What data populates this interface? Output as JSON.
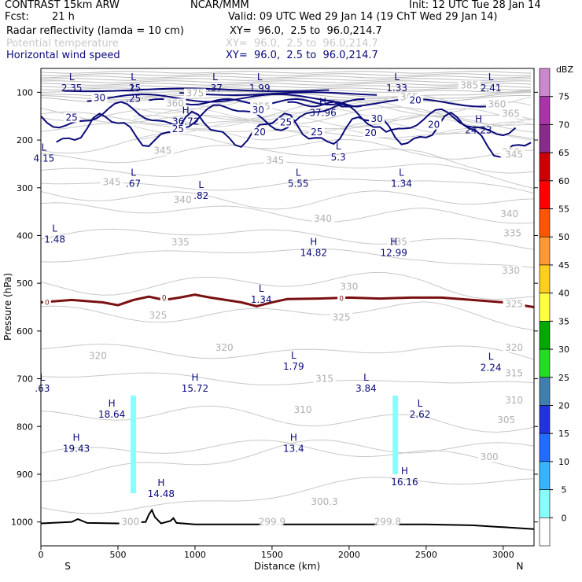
{
  "header": {
    "model": "CONTRAST 15km ARW",
    "org": "NCAR/MMM",
    "init": "Init: 12 UTC Tue 28 Jan 14",
    "fcst_label": "Fcst:",
    "fcst_value": "21 h",
    "valid": "Valid: 09 UTC Wed 29 Jan 14 (19 ChT Wed 29 Jan 14)",
    "fields": [
      {
        "name": "Radar reflectivity (lamda = 10 cm)",
        "xy": "XY=  96.0,  2.5 to  96.0,214.7",
        "color": "#000000"
      },
      {
        "name": "Potential temperature",
        "xy": "XY=  96.0,  2.5 to  96.0,214.7",
        "color": "#c8c8c8"
      },
      {
        "name": "Horizontal wind speed",
        "xy": "XY=  96.0,  2.5 to  96.0,214.7",
        "color": "#0a0a7a"
      }
    ]
  },
  "chart_data": {
    "type": "cross-section",
    "xlabel": "Distance (km)",
    "ylabel": "Pressure (hPa)",
    "xlim": [
      0,
      3200
    ],
    "ylim": [
      1050,
      50
    ],
    "x_ticks": [
      0,
      500,
      1000,
      1500,
      2000,
      2500,
      3000
    ],
    "y_ticks": [
      100,
      200,
      300,
      400,
      500,
      600,
      700,
      800,
      900,
      1000
    ],
    "x_end_labels": {
      "left": "S",
      "right": "N"
    },
    "colorbar": {
      "unit": "dBZ",
      "levels": [
        0,
        5,
        10,
        15,
        20,
        25,
        30,
        35,
        40,
        45,
        50,
        55,
        60,
        65,
        70,
        75
      ],
      "colors": [
        "#ffffff",
        "#86ffff",
        "#36b4ff",
        "#1f6cff",
        "#2233dd",
        "#3f7faf",
        "#22dd22",
        "#00aa00",
        "#ffff44",
        "#ffcc22",
        "#ff9933",
        "#ff5500",
        "#ff0000",
        "#cc0000",
        "#8a2a8a",
        "#aa33aa",
        "#cc88cc"
      ]
    },
    "theta_labels": [
      {
        "x": 1000,
        "p": 107,
        "v": "375"
      },
      {
        "x": 2780,
        "p": 90,
        "v": "385"
      },
      {
        "x": 1430,
        "p": 135,
        "v": "355"
      },
      {
        "x": 870,
        "p": 128,
        "v": "360"
      },
      {
        "x": 2960,
        "p": 130,
        "v": "360"
      },
      {
        "x": 3050,
        "p": 150,
        "v": "365"
      },
      {
        "x": 2390,
        "p": 115,
        "v": "365"
      },
      {
        "x": 3050,
        "p": 230,
        "v": "350"
      },
      {
        "x": 790,
        "p": 227,
        "v": "345"
      },
      {
        "x": 1520,
        "p": 248,
        "v": "345"
      },
      {
        "x": 3070,
        "p": 235,
        "v": "345"
      },
      {
        "x": 460,
        "p": 293,
        "v": "345"
      },
      {
        "x": 920,
        "p": 330,
        "v": "340"
      },
      {
        "x": 1830,
        "p": 370,
        "v": "340"
      },
      {
        "x": 3040,
        "p": 360,
        "v": "340"
      },
      {
        "x": 905,
        "p": 419,
        "v": "335"
      },
      {
        "x": 2320,
        "p": 418,
        "v": "335"
      },
      {
        "x": 3060,
        "p": 400,
        "v": "335"
      },
      {
        "x": 2000,
        "p": 512,
        "v": "330"
      },
      {
        "x": 3050,
        "p": 478,
        "v": "330"
      },
      {
        "x": 760,
        "p": 572,
        "v": "325"
      },
      {
        "x": 1950,
        "p": 576,
        "v": "325"
      },
      {
        "x": 3070,
        "p": 548,
        "v": "325"
      },
      {
        "x": 370,
        "p": 657,
        "v": "320"
      },
      {
        "x": 1190,
        "p": 640,
        "v": "320"
      },
      {
        "x": 3070,
        "p": 640,
        "v": "320"
      },
      {
        "x": 1840,
        "p": 705,
        "v": "315"
      },
      {
        "x": 3070,
        "p": 693,
        "v": "315"
      },
      {
        "x": 1700,
        "p": 770,
        "v": "310"
      },
      {
        "x": 3070,
        "p": 750,
        "v": "310"
      },
      {
        "x": 3020,
        "p": 791,
        "v": "305"
      },
      {
        "x": 2910,
        "p": 869,
        "v": "300"
      },
      {
        "x": 580,
        "p": 1005,
        "v": "300"
      },
      {
        "x": 1500,
        "p": 1005,
        "v": "299.9"
      },
      {
        "x": 2250,
        "p": 1005,
        "v": "299.8"
      },
      {
        "x": 1840,
        "p": 963,
        "v": "300.3"
      }
    ],
    "wind_contour_labels": [
      {
        "x": 380,
        "p": 117,
        "v": "30"
      },
      {
        "x": 1410,
        "p": 142,
        "v": "30"
      },
      {
        "x": 2180,
        "p": 160,
        "v": "30"
      },
      {
        "x": 2430,
        "p": 122,
        "v": "20"
      },
      {
        "x": 2550,
        "p": 173,
        "v": "20"
      },
      {
        "x": 200,
        "p": 158,
        "v": "25"
      },
      {
        "x": 1590,
        "p": 168,
        "v": "25"
      },
      {
        "x": 1790,
        "p": 188,
        "v": "25"
      },
      {
        "x": 890,
        "p": 182,
        "v": "25"
      },
      {
        "x": 1420,
        "p": 188,
        "v": "20"
      },
      {
        "x": 2140,
        "p": 190,
        "v": "20"
      }
    ],
    "extrema": [
      {
        "t": "L",
        "x": 200,
        "p": 75,
        "v": "2.35"
      },
      {
        "t": "L",
        "x": 600,
        "p": 75,
        "v": ".25"
      },
      {
        "t": "L",
        "x": 1130,
        "p": 75,
        "v": ".37"
      },
      {
        "t": "L",
        "x": 1420,
        "p": 75,
        "v": "1.99"
      },
      {
        "t": "L",
        "x": 2310,
        "p": 75,
        "v": "1.33"
      },
      {
        "t": "L",
        "x": 2920,
        "p": 75,
        "v": "2.41"
      },
      {
        "t": "L",
        "x": 600,
        "p": 97,
        "v": ".25"
      },
      {
        "t": "H",
        "x": 940,
        "p": 145,
        "v": "36.72"
      },
      {
        "t": "H",
        "x": 1830,
        "p": 127,
        "v": "37.96"
      },
      {
        "t": "H",
        "x": 2840,
        "p": 163,
        "v": "24.23"
      },
      {
        "t": "L",
        "x": 20,
        "p": 222,
        "v": "4.15"
      },
      {
        "t": "L",
        "x": 1930,
        "p": 220,
        "v": "5.3"
      },
      {
        "t": "L",
        "x": 600,
        "p": 275,
        "v": ".67"
      },
      {
        "t": "L",
        "x": 1670,
        "p": 275,
        "v": "5.55"
      },
      {
        "t": "L",
        "x": 2340,
        "p": 275,
        "v": "1.34"
      },
      {
        "t": "L",
        "x": 1040,
        "p": 300,
        "v": ".82"
      },
      {
        "t": "L",
        "x": 90,
        "p": 392,
        "v": "1.48"
      },
      {
        "t": "H",
        "x": 1770,
        "p": 420,
        "v": "14.82"
      },
      {
        "t": "H",
        "x": 2290,
        "p": 420,
        "v": "12.99"
      },
      {
        "t": "L",
        "x": 1430,
        "p": 518,
        "v": "1.34"
      },
      {
        "t": "L",
        "x": 1640,
        "p": 658,
        "v": "1.79"
      },
      {
        "t": "L",
        "x": 2920,
        "p": 660,
        "v": "2.24"
      },
      {
        "t": "H",
        "x": 1000,
        "p": 704,
        "v": "15.72"
      },
      {
        "t": "L",
        "x": 2110,
        "p": 704,
        "v": "3.84"
      },
      {
        "t": "L",
        "x": 10,
        "p": 704,
        "v": ".63"
      },
      {
        "t": "H",
        "x": 460,
        "p": 758,
        "v": "18.64"
      },
      {
        "t": "L",
        "x": 2460,
        "p": 758,
        "v": "2.62"
      },
      {
        "t": "H",
        "x": 230,
        "p": 830,
        "v": "19.43"
      },
      {
        "t": "H",
        "x": 1640,
        "p": 830,
        "v": "13.4"
      },
      {
        "t": "H",
        "x": 780,
        "p": 925,
        "v": "14.48"
      },
      {
        "t": "H",
        "x": 2360,
        "p": 900,
        "v": "16.16"
      }
    ],
    "freezing_level_label": "0",
    "freezing_level": [
      [
        0,
        540
      ],
      [
        200,
        535
      ],
      [
        400,
        540
      ],
      [
        500,
        546
      ],
      [
        600,
        535
      ],
      [
        700,
        528
      ],
      [
        800,
        535
      ],
      [
        900,
        530
      ],
      [
        1000,
        524
      ],
      [
        1100,
        530
      ],
      [
        1200,
        535
      ],
      [
        1300,
        540
      ],
      [
        1400,
        548
      ],
      [
        1500,
        540
      ],
      [
        1600,
        533
      ],
      [
        1800,
        532
      ],
      [
        2000,
        530
      ],
      [
        2200,
        532
      ],
      [
        2400,
        530
      ],
      [
        2600,
        530
      ],
      [
        2800,
        535
      ],
      [
        3000,
        540
      ],
      [
        3200,
        550
      ]
    ],
    "reflectivity_columns": [
      {
        "x": 600,
        "p_top": 735,
        "p_bottom": 940,
        "dbz": 5
      },
      {
        "x": 2300,
        "p_top": 735,
        "p_bottom": 900,
        "dbz": 5
      }
    ],
    "terrain": [
      [
        0,
        1003
      ],
      [
        200,
        1000
      ],
      [
        240,
        994
      ],
      [
        300,
        1002
      ],
      [
        500,
        1003
      ],
      [
        680,
        1000
      ],
      [
        700,
        985
      ],
      [
        720,
        975
      ],
      [
        740,
        990
      ],
      [
        780,
        1003
      ],
      [
        840,
        998
      ],
      [
        860,
        992
      ],
      [
        880,
        1002
      ],
      [
        1000,
        1005
      ],
      [
        1500,
        1005
      ],
      [
        2000,
        1005
      ],
      [
        2500,
        1005
      ],
      [
        2800,
        1007
      ],
      [
        3000,
        1011
      ],
      [
        3200,
        1015
      ]
    ]
  }
}
